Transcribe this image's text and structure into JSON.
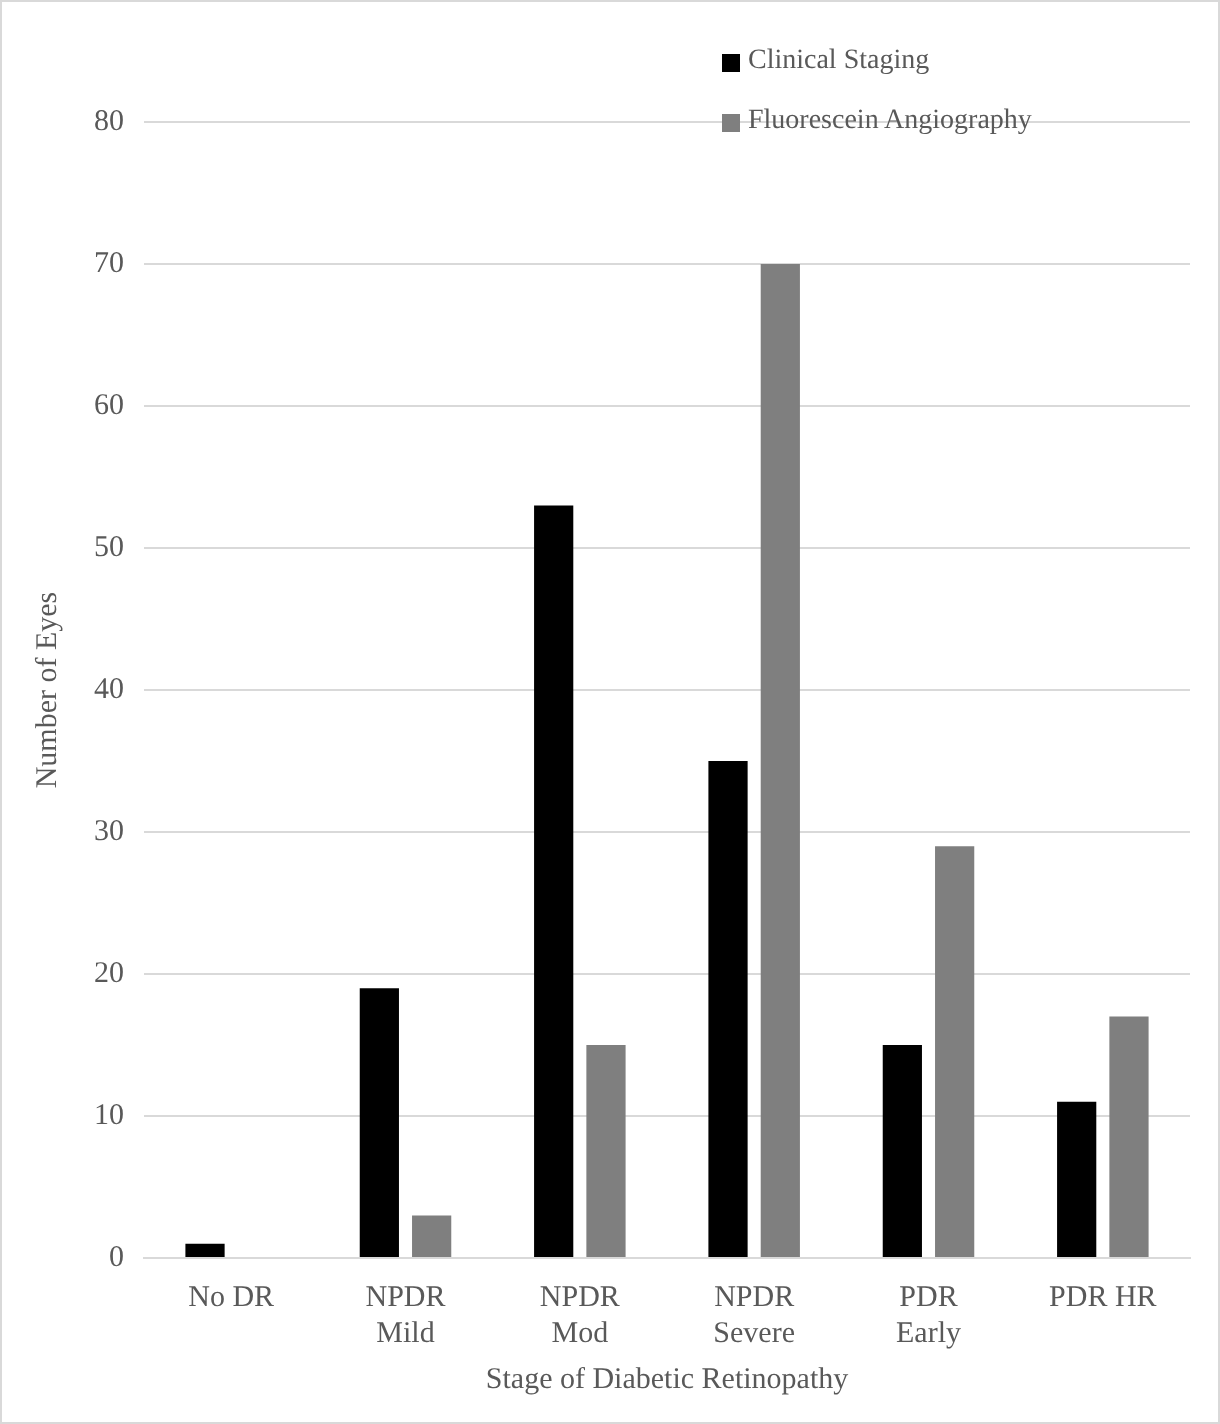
{
  "chart_data": {
    "type": "bar",
    "xlabel": "Stage of Diabetic Retinopathy",
    "ylabel": "Number of Eyes",
    "categories": [
      "No DR",
      "NPDR\nMild",
      "NPDR\nMod",
      "NPDR\nSevere",
      "PDR\nEarly",
      "PDR HR"
    ],
    "series": [
      {
        "name": "Clinical Staging",
        "color": "#000000",
        "values": [
          1,
          19,
          53,
          35,
          15,
          11
        ]
      },
      {
        "name": "Fluorescein Angiography",
        "color": "#7f7f7f",
        "values": [
          0,
          3,
          15,
          70,
          29,
          17
        ]
      }
    ],
    "ylim": [
      0,
      80
    ],
    "yticks": [
      0,
      10,
      20,
      30,
      40,
      50,
      60,
      70,
      80
    ],
    "grid": "y",
    "legend": "top right"
  }
}
